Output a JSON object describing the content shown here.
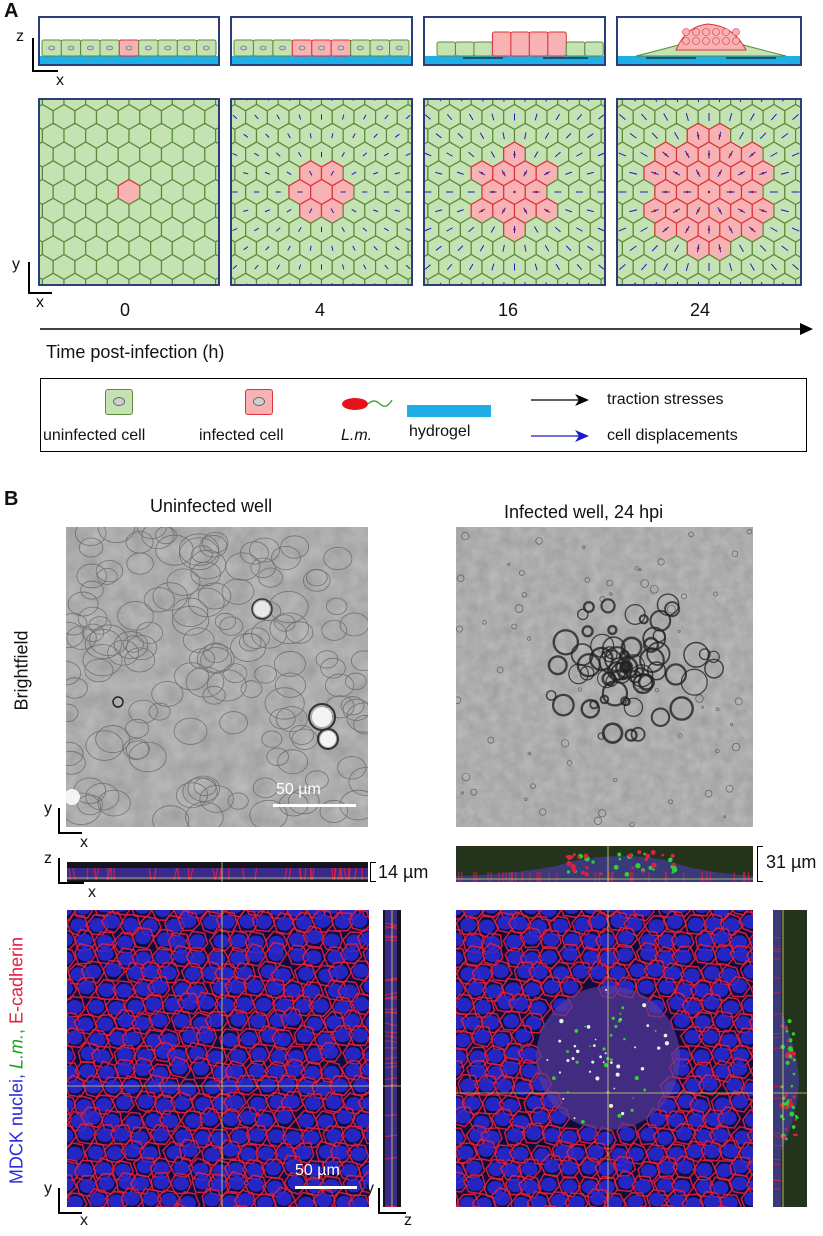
{
  "panel_a": {
    "letter": "A",
    "time_points": [
      "0",
      "4",
      "16",
      "24"
    ],
    "time_axis_label": "Time post-infection (h)",
    "axis_side": {
      "z": "z",
      "x": "x"
    },
    "axis_top": {
      "y": "y",
      "x": "x"
    },
    "legend": {
      "uninfected": "uninfected cell",
      "infected": "infected cell",
      "bacteria": "L.m.",
      "hydrogel": "hydrogel",
      "traction": "traction stresses",
      "displacement": "cell displacements"
    }
  },
  "panel_b": {
    "letter": "B",
    "col_left_title": "Uninfected well",
    "col_right_title": "Infected well, 24 hpi",
    "row_brightfield_label": "Brightfield",
    "row_fluo_label": {
      "part1": "MDCK nuclei, ",
      "part2": "L.m.",
      "part3": ", ",
      "part4": "E-cadherin"
    },
    "scale_bar_bf": "50 µm",
    "scale_bar_fluo": "50 µm",
    "height_left": "14 µm",
    "height_right": "31 µm",
    "axis_bf": {
      "y": "y",
      "x": "x"
    },
    "axis_xz": {
      "z": "z",
      "x": "x"
    },
    "axis_fluo": {
      "y": "y",
      "x": "x"
    },
    "axis_yz": {
      "y": "y",
      "z": "z"
    }
  },
  "colors": {
    "frame": "#2c3e7a",
    "uninfected_fill": "#c5e3b2",
    "uninfected_edge": "#5b8b3a",
    "infected_fill": "#f7b3b3",
    "infected_edge": "#e0303a",
    "hydrogel": "#1eaee8",
    "displacement": "#1a1ac8",
    "nuclei": "#2a2ad8",
    "ecad": "#e02040",
    "lm": "#30d030"
  }
}
